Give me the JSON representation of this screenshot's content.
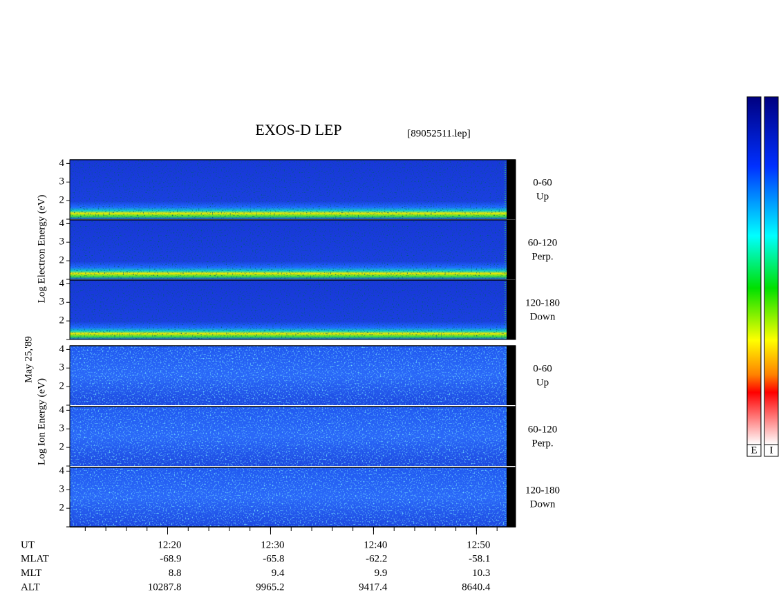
{
  "title": "EXOS-D LEP",
  "file": "[89052511.lep]",
  "date": "May 25,'89",
  "groups": [
    {
      "label": "Log Electron Energy (eV)"
    },
    {
      "label": "Log Ion Energy (eV)"
    }
  ],
  "panels": [
    {
      "angle": "0-60",
      "direction": "Up",
      "ylim": [
        1,
        4.2
      ],
      "yticks": [
        2,
        3,
        4
      ]
    },
    {
      "angle": "60-120",
      "direction": "Perp.",
      "ylim": [
        1,
        4.2
      ],
      "yticks": [
        2,
        3,
        4
      ]
    },
    {
      "angle": "120-180",
      "direction": "Down",
      "ylim": [
        1,
        4.2
      ],
      "yticks": [
        2,
        3,
        4
      ]
    },
    {
      "angle": "0-60",
      "direction": "Up",
      "ylim": [
        1,
        4.2
      ],
      "yticks": [
        2,
        3,
        4
      ]
    },
    {
      "angle": "60-120",
      "direction": "Perp.",
      "ylim": [
        1,
        4.2
      ],
      "yticks": [
        2,
        3,
        4
      ]
    },
    {
      "angle": "120-180",
      "direction": "Down",
      "ylim": [
        1,
        4.2
      ],
      "yticks": [
        2,
        3,
        4
      ]
    }
  ],
  "x_axis": {
    "label": "UT",
    "xlim": [
      730.5,
      773.8
    ],
    "xticks": [
      {
        "value": 740,
        "label": "12:20"
      },
      {
        "value": 750,
        "label": "12:30"
      },
      {
        "value": 760,
        "label": "12:40"
      },
      {
        "value": 770,
        "label": "12:50"
      }
    ]
  },
  "ephemeris": [
    {
      "label": "MLAT",
      "values": [
        -68.9,
        -65.8,
        -62.2,
        -58.1
      ]
    },
    {
      "label": "MLT",
      "values": [
        8.8,
        9.4,
        9.9,
        10.3
      ]
    },
    {
      "label": "ALT",
      "values": [
        10287.8,
        9965.2,
        9417.4,
        8640.4
      ]
    }
  ],
  "colorbars": [
    "E",
    "I"
  ]
}
